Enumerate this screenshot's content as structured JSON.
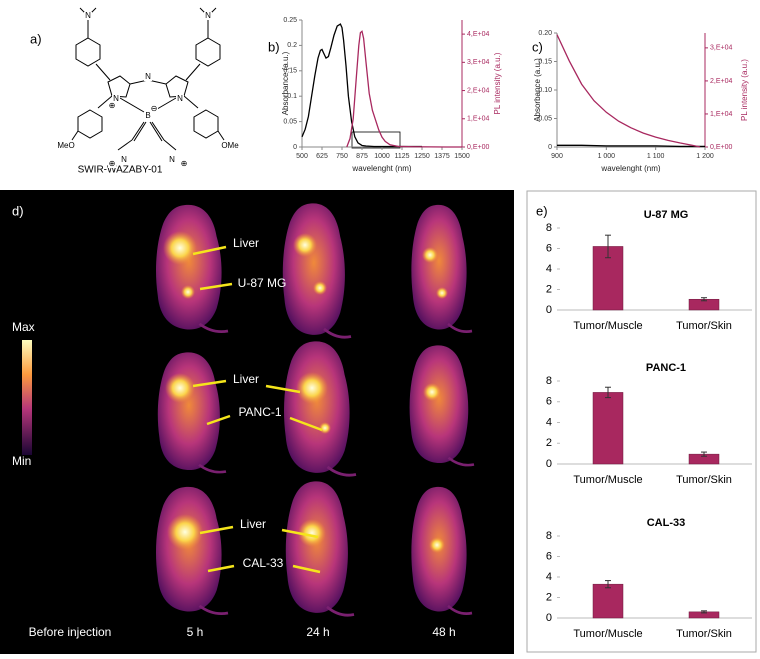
{
  "panel_labels": [
    "a)",
    "b)",
    "c)",
    "d)",
    "e)"
  ],
  "molecule": {
    "name": "SWIR-WAZABY-01",
    "atoms": [
      "N",
      "N",
      "N",
      "N",
      "N",
      "B",
      "⊕",
      "⊖",
      "MeO",
      "OMe",
      "N",
      "N",
      "⊕",
      "⊕"
    ]
  },
  "imaging": {
    "scale": {
      "max": "Max",
      "min": "Min"
    },
    "columns": [
      "Before injection",
      "5 h",
      "24 h",
      "48 h"
    ],
    "rows": [
      {
        "labels": [
          "Liver",
          "U-87 MG"
        ]
      },
      {
        "labels": [
          "Liver",
          "PANC-1"
        ]
      },
      {
        "labels": [
          "Liver",
          "CAL-33"
        ]
      }
    ]
  },
  "chart_data": [
    {
      "type": "line",
      "xlabel": "wavelenght (nm)",
      "ylabel": "Absorbance (a.u.)",
      "y2label": "PL intensity (a.u.)",
      "xlim": [
        500,
        1500
      ],
      "xticks": [
        500,
        625,
        750,
        875,
        1000,
        1125,
        1250,
        1375,
        1500
      ],
      "ylim": [
        0,
        0.25
      ],
      "yticks": [
        0,
        0.05,
        0.1,
        0.15,
        0.2,
        0.25
      ],
      "y2lim": [
        0,
        45000
      ],
      "y2ticks": [
        {
          "value": 0,
          "label": "0,E+00"
        },
        {
          "value": 10000,
          "label": "1,E+04"
        },
        {
          "value": 20000,
          "label": "2,E+04"
        },
        {
          "value": 30000,
          "label": "3,E+04"
        },
        {
          "value": 40000,
          "label": "4,E+04"
        }
      ],
      "series": [
        {
          "color": "#000000",
          "x": [
            500,
            520,
            540,
            560,
            580,
            600,
            615,
            625,
            635,
            650,
            665,
            680,
            700,
            720,
            740,
            750,
            760,
            775,
            790,
            810,
            830,
            850,
            875,
            900,
            950,
            1000,
            1100,
            1250
          ],
          "values": [
            0.02,
            0.035,
            0.06,
            0.1,
            0.14,
            0.175,
            0.19,
            0.192,
            0.185,
            0.175,
            0.178,
            0.195,
            0.22,
            0.238,
            0.242,
            0.235,
            0.21,
            0.16,
            0.1,
            0.05,
            0.02,
            0.008,
            0.003,
            0.002,
            0.001,
            0.001,
            0.001,
            0.001
          ]
        },
        {
          "color": "#a8285f",
          "axis": "y2",
          "x": [
            780,
            800,
            820,
            840,
            855,
            865,
            875,
            885,
            900,
            920,
            940,
            960,
            980,
            1000,
            1020,
            1050,
            1100,
            1200,
            1300,
            1400,
            1500
          ],
          "values": [
            0,
            3000,
            10000,
            25000,
            36000,
            40500,
            41000,
            38500,
            30000,
            19000,
            13000,
            9500,
            6000,
            3500,
            2000,
            800,
            200,
            100,
            50,
            0,
            0
          ]
        }
      ]
    },
    {
      "type": "line",
      "xlabel": "wavelenght (nm)",
      "ylabel": "Absorbance (a.u.)",
      "y2label": "PL intensity (a.u.)",
      "xlim": [
        900,
        1200
      ],
      "xticks": [
        900,
        {
          "value": 1000,
          "label": "1 000"
        },
        {
          "value": 1100,
          "label": "1 100"
        },
        {
          "value": 1200,
          "label": "1 200"
        }
      ],
      "ylim": [
        0,
        0.2
      ],
      "yticks": [
        0,
        0.05,
        {
          "value": 0.1,
          "label": "0.10"
        },
        0.15,
        {
          "value": 0.2,
          "label": "0.20"
        }
      ],
      "y2lim": [
        0,
        34500
      ],
      "y2ticks": [
        {
          "value": 0,
          "label": "0,E+00"
        },
        {
          "value": 10000,
          "label": "1,E+04"
        },
        {
          "value": 20000,
          "label": "2,E+04"
        },
        {
          "value": 30000,
          "label": "3,E+04"
        }
      ],
      "series": [
        {
          "color": "#000000",
          "x": [
            900,
            950,
            1000,
            1050,
            1100,
            1150,
            1200
          ],
          "values": [
            0.003,
            0.003,
            0.002,
            0.002,
            0.002,
            0.001,
            0.001
          ]
        },
        {
          "color": "#a8285f",
          "axis": "y2",
          "x": [
            900,
            925,
            950,
            975,
            1000,
            1025,
            1050,
            1075,
            1100,
            1125,
            1150,
            1175,
            1190
          ],
          "values": [
            34000,
            26000,
            19000,
            14000,
            10500,
            7800,
            5800,
            4200,
            3000,
            2000,
            1200,
            500,
            0
          ]
        }
      ]
    },
    {
      "type": "bar",
      "title": "U-87 MG",
      "categories": [
        "Tumor/Muscle",
        "Tumor/Skin"
      ],
      "values": [
        6.2,
        1.05
      ],
      "errors": [
        1.1,
        0.15
      ],
      "color": "#a8285f",
      "ylim": [
        0,
        8
      ],
      "yticks": [
        0,
        2,
        4,
        6,
        8
      ]
    },
    {
      "type": "bar",
      "title": "PANC-1",
      "categories": [
        "Tumor/Muscle",
        "Tumor/Skin"
      ],
      "values": [
        6.9,
        0.95
      ],
      "errors": [
        0.5,
        0.2
      ],
      "color": "#a8285f",
      "ylim": [
        0,
        8
      ],
      "yticks": [
        0,
        2,
        4,
        6,
        8
      ]
    },
    {
      "type": "bar",
      "title": "CAL-33",
      "categories": [
        "Tumor/Muscle",
        "Tumor/Skin"
      ],
      "values": [
        3.3,
        0.6
      ],
      "errors": [
        0.35,
        0.1
      ],
      "color": "#a8285f",
      "ylim": [
        0,
        8
      ],
      "yticks": [
        0,
        2,
        4,
        6,
        8
      ]
    }
  ]
}
